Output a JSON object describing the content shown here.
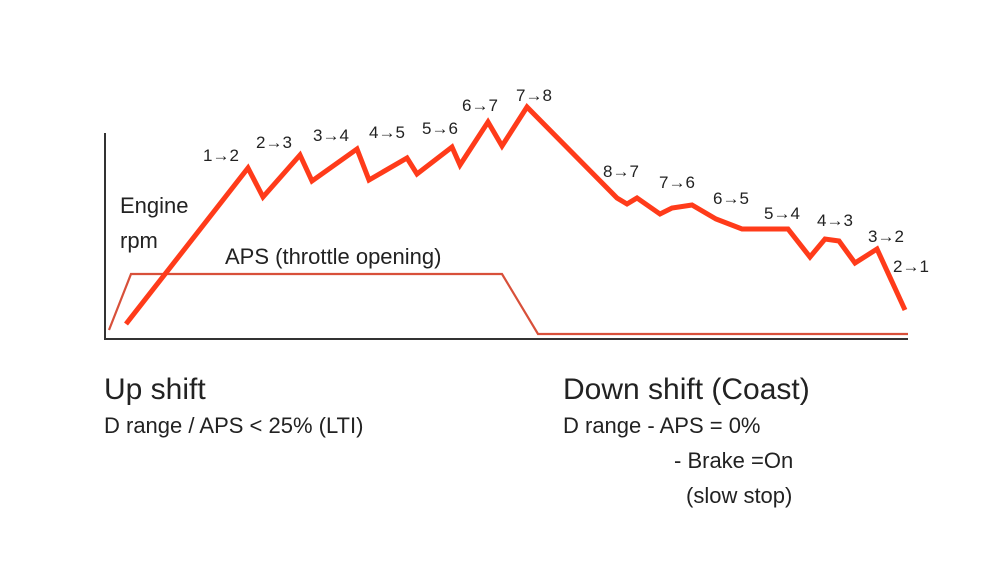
{
  "diagram": {
    "rpm_label": [
      "Engine",
      "rpm"
    ],
    "aps_label": "APS (throttle opening)",
    "upshift_labels": [
      "1→2",
      "2→3",
      "3→4",
      "4→5",
      "5→6",
      "6→7",
      "7→8"
    ],
    "downshift_labels": [
      "8→7",
      "7→6",
      "6→5",
      "5→4",
      "4→3",
      "3→2",
      "2→1"
    ],
    "colors": {
      "rpm_line": "#ff3b1a",
      "aps_line": "#d8503a",
      "axis": "#333333",
      "text": "#222222"
    }
  },
  "up_shift": {
    "title": "Up shift",
    "condition": "D range / APS < 25% (LTI)"
  },
  "down_shift": {
    "title": "Down shift (Coast)",
    "condition_1": "D range  - APS = 0%",
    "condition_2": "- Brake =On",
    "condition_3": "(slow stop)"
  }
}
